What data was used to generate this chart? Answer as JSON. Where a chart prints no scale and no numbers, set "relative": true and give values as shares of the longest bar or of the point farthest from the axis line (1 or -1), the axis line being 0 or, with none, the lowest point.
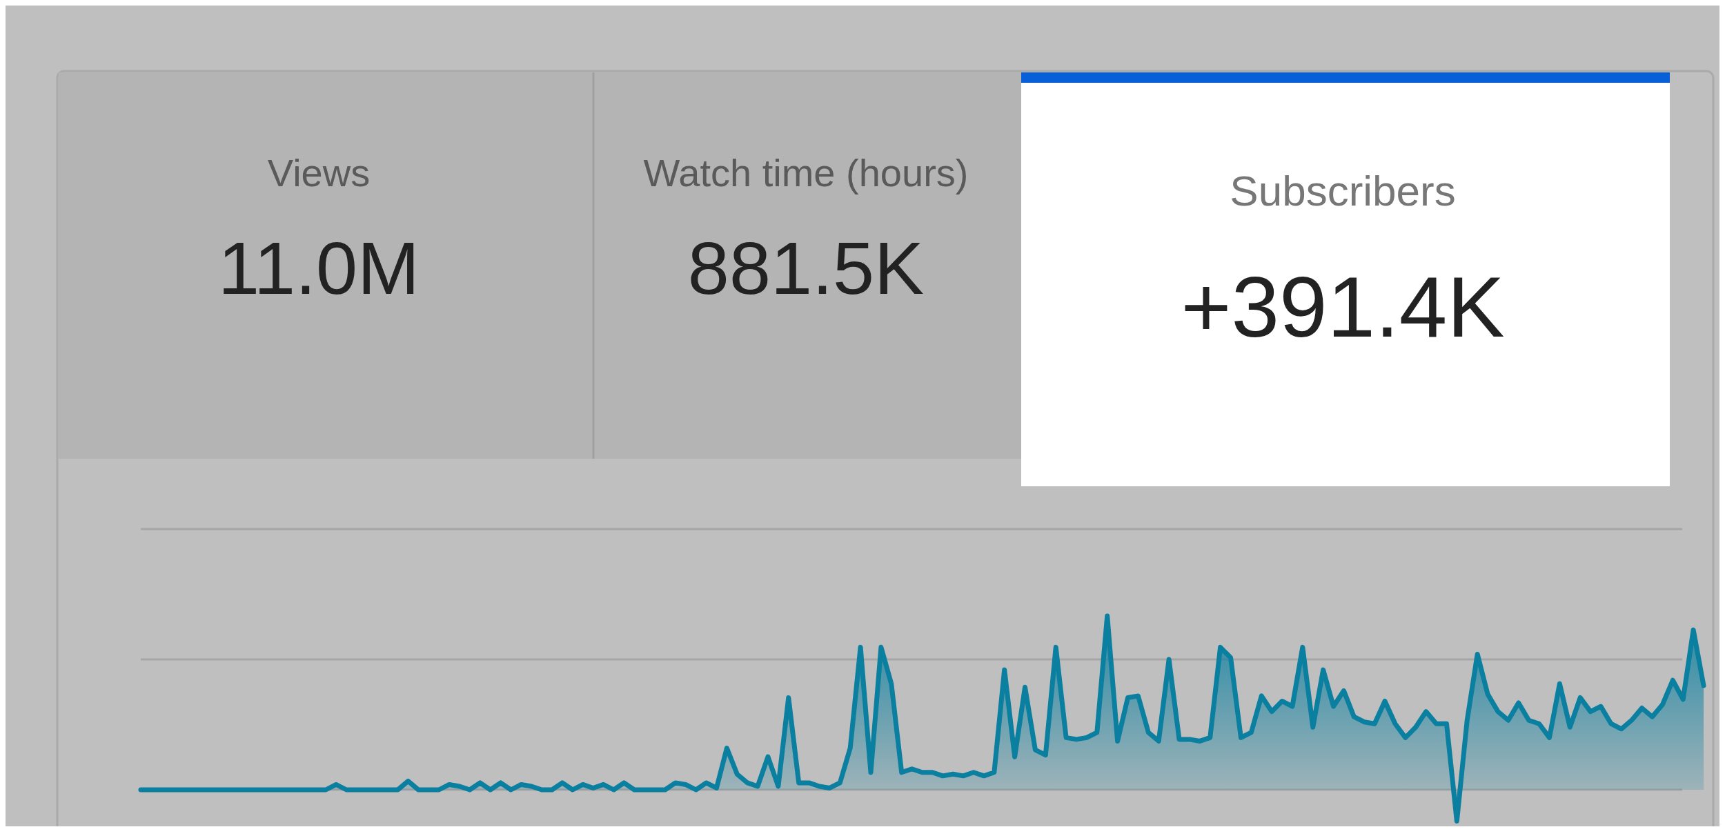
{
  "chart_data": [
    {
      "type": "other",
      "annotations": [
        "Views",
        "11.0M",
        "Watch time (hours)",
        "881.5K",
        "Subscribers",
        "+391.4K"
      ]
    },
    {
      "type": "area",
      "relative": true,
      "color": "#0a7fa0",
      "ref_lines": [
        {
          "axis": "y",
          "value": 0,
          "color": "#a6a6a6"
        },
        {
          "axis": "y",
          "value": 0.75,
          "color": "#a6a6a6"
        },
        {
          "axis": "y",
          "value": 1.5,
          "color": "#a6a6a6"
        }
      ],
      "categories": [
        null,
        null,
        null,
        null,
        null,
        null,
        null,
        null,
        null,
        null,
        null,
        null,
        null,
        null,
        null,
        null,
        null,
        null,
        null,
        null,
        null,
        null,
        null,
        null,
        null,
        null,
        null,
        null,
        null,
        null,
        null,
        null,
        null,
        null,
        null,
        null,
        null,
        null,
        null,
        null,
        null,
        null,
        null,
        null,
        null,
        null,
        null,
        null,
        null,
        null,
        null,
        null,
        null,
        null,
        null,
        null,
        null,
        null,
        null,
        null,
        null,
        null,
        null,
        null,
        null,
        null,
        null,
        null,
        null,
        null,
        null,
        null,
        null,
        null,
        null,
        null,
        null,
        null,
        null,
        null,
        null,
        null,
        null,
        null,
        null,
        null,
        null,
        null,
        null,
        null,
        null,
        null,
        null,
        null,
        null,
        null,
        null,
        null,
        null,
        null,
        null,
        null,
        null,
        null,
        null,
        null,
        null,
        null,
        null,
        null,
        null,
        null,
        null,
        null,
        null,
        null,
        null,
        null,
        null,
        null,
        null,
        null,
        null,
        null,
        null,
        null,
        null,
        null,
        null,
        null,
        null,
        null,
        null,
        null,
        null,
        null,
        null,
        null,
        null,
        null,
        null,
        null,
        null,
        null,
        null,
        null,
        null,
        null,
        null,
        null,
        null,
        null,
        null
      ],
      "values": [
        0,
        0,
        0,
        0,
        0,
        0,
        0,
        0,
        0,
        0,
        0,
        0,
        0,
        0,
        0,
        0,
        0,
        0,
        0,
        0.03,
        0,
        0,
        0,
        0,
        0,
        0,
        0.05,
        0,
        0,
        0,
        0.03,
        0.02,
        0,
        0.04,
        0,
        0.04,
        0,
        0.03,
        0.02,
        0,
        0,
        0.04,
        0,
        0.03,
        0.01,
        0.03,
        0,
        0.04,
        0,
        0,
        0,
        0,
        0.04,
        0.03,
        0,
        0.04,
        0.01,
        0.24,
        0.09,
        0.04,
        0.02,
        0.19,
        0.02,
        0.53,
        0.04,
        0.04,
        0.02,
        0.01,
        0.04,
        0.24,
        0.82,
        0.1,
        0.82,
        0.61,
        0.1,
        0.12,
        0.1,
        0.1,
        0.08,
        0.09,
        0.08,
        0.1,
        0.08,
        0.1,
        0.69,
        0.19,
        0.59,
        0.23,
        0.2,
        0.82,
        0.3,
        0.29,
        0.3,
        0.33,
        1.0,
        0.28,
        0.53,
        0.54,
        0.33,
        0.28,
        0.75,
        0.29,
        0.29,
        0.28,
        0.3,
        0.82,
        0.76,
        0.3,
        0.33,
        0.54,
        0.45,
        0.51,
        0.48,
        0.82,
        0.36,
        0.69,
        0.48,
        0.57,
        0.42,
        0.39,
        0.38,
        0.51,
        0.38,
        0.3,
        0.36,
        0.45,
        0.38,
        0.38,
        -0.18,
        0.4,
        0.78,
        0.55,
        0.45,
        0.4,
        0.5,
        0.4,
        0.38,
        0.3,
        0.61,
        0.36,
        0.53,
        0.45,
        0.48,
        0.38,
        0.35,
        0.4,
        0.47,
        0.42,
        0.49,
        0.63,
        0.52,
        0.92,
        0.6
      ]
    }
  ]
}
